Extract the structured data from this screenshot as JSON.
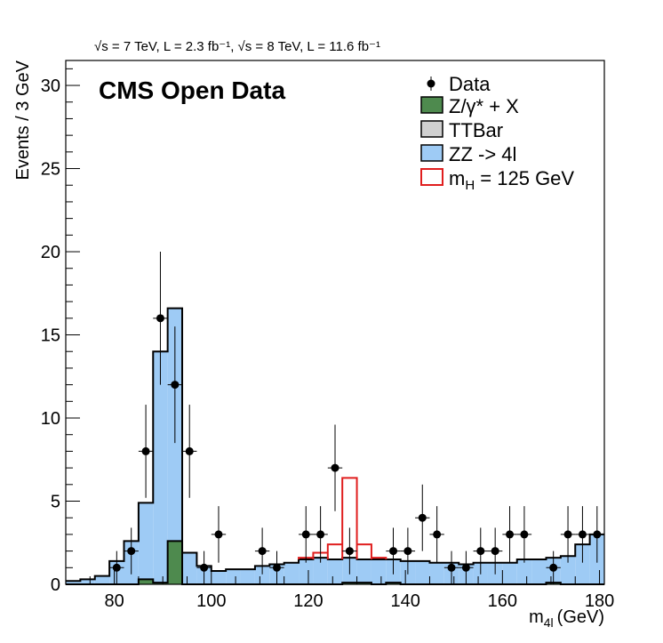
{
  "chart_data": {
    "type": "bar",
    "subtitle": "√s = 7 TeV, L = 2.3 fb⁻¹, √s = 8 TeV, L = 11.6 fb⁻¹",
    "title": "CMS Open Data",
    "xlabel": "m",
    "xlabel_sub": "4l",
    "xlabel_unit": "(GeV)",
    "ylabel": "Events / 3 GeV",
    "xlim": [
      70,
      181
    ],
    "ylim": [
      0,
      31.5
    ],
    "x_ticks": [
      80,
      100,
      120,
      140,
      160,
      180
    ],
    "y_ticks": [
      0,
      5,
      10,
      15,
      20,
      25,
      30
    ],
    "bin_width": 3,
    "bin_edges_start": 70,
    "legend_position": "top-right",
    "colors": {
      "zx": "#4e8a4e",
      "ttbar": "#d0d0d0",
      "zz": "#9ecbf5",
      "higgs": "#e01e1e",
      "data": "#000000"
    },
    "legend": [
      {
        "key": "data",
        "label": "Data",
        "style": "marker"
      },
      {
        "key": "zx",
        "label": "Z/γ* + X",
        "style": "box"
      },
      {
        "key": "ttbar",
        "label": "TTBar",
        "style": "box"
      },
      {
        "key": "zz",
        "label": "ZZ -> 4l",
        "style": "box"
      },
      {
        "key": "higgs",
        "label": "m",
        "label_sub": "H",
        "label_suffix": " = 125 GeV",
        "style": "outline"
      }
    ],
    "series": [
      {
        "name": "Z/γ* + X",
        "key": "zx",
        "values": [
          0,
          0,
          0,
          0,
          0,
          0.3,
          0.1,
          2.6,
          0,
          0,
          0,
          0,
          0,
          0,
          0,
          0,
          0,
          0,
          0,
          0.1,
          0.1,
          0,
          0.1,
          0,
          0,
          0,
          0,
          0,
          0,
          0,
          0,
          0,
          0,
          0.1,
          0,
          0,
          0
        ]
      },
      {
        "name": "TTBar",
        "key": "ttbar",
        "values": [
          0,
          0,
          0,
          0,
          0,
          0,
          0,
          0,
          0,
          0,
          0,
          0,
          0,
          0,
          0,
          0,
          0,
          0,
          0,
          0,
          0,
          0,
          0,
          0,
          0,
          0,
          0,
          0,
          0,
          0,
          0,
          0,
          0,
          0,
          0,
          0,
          0
        ]
      },
      {
        "name": "ZZ -> 4l",
        "key": "zz",
        "values": [
          0.2,
          0.3,
          0.5,
          1.4,
          2.6,
          4.6,
          13.9,
          14.0,
          1.9,
          1.1,
          0.8,
          0.9,
          0.9,
          1.1,
          1.2,
          1.3,
          1.5,
          1.6,
          1.5,
          1.5,
          1.4,
          1.5,
          1.4,
          1.4,
          1.4,
          1.3,
          1.3,
          1.2,
          1.3,
          1.3,
          1.3,
          1.5,
          1.5,
          1.5,
          1.7,
          2.4,
          3.0
        ]
      },
      {
        "name": "m_H = 125 GeV",
        "key": "higgs",
        "values": [
          0,
          0,
          0,
          0,
          0,
          0,
          0,
          0,
          0,
          0,
          0,
          0,
          0,
          0,
          0,
          0,
          0.1,
          0.3,
          0.9,
          4.8,
          0.9,
          0.1,
          0,
          0,
          0,
          0,
          0,
          0,
          0,
          0,
          0,
          0,
          0,
          0,
          0,
          0,
          0
        ]
      }
    ],
    "data_points": [
      {
        "x": 80.5,
        "y": 1,
        "err": 1.0
      },
      {
        "x": 83.5,
        "y": 2,
        "err": 1.4
      },
      {
        "x": 86.5,
        "y": 8,
        "err": 2.8
      },
      {
        "x": 89.5,
        "y": 16,
        "err": 4.0
      },
      {
        "x": 92.5,
        "y": 12,
        "err": 3.5
      },
      {
        "x": 95.5,
        "y": 8,
        "err": 2.8
      },
      {
        "x": 98.5,
        "y": 1,
        "err": 1.0
      },
      {
        "x": 101.5,
        "y": 3,
        "err": 1.7
      },
      {
        "x": 110.5,
        "y": 2,
        "err": 1.4
      },
      {
        "x": 113.5,
        "y": 1,
        "err": 1.0
      },
      {
        "x": 119.5,
        "y": 3,
        "err": 1.7
      },
      {
        "x": 122.5,
        "y": 3,
        "err": 1.7
      },
      {
        "x": 125.5,
        "y": 7,
        "err": 2.6
      },
      {
        "x": 128.5,
        "y": 2,
        "err": 1.4
      },
      {
        "x": 137.5,
        "y": 2,
        "err": 1.4
      },
      {
        "x": 140.5,
        "y": 2,
        "err": 1.4
      },
      {
        "x": 143.5,
        "y": 4,
        "err": 2.0
      },
      {
        "x": 146.5,
        "y": 3,
        "err": 1.7
      },
      {
        "x": 149.5,
        "y": 1,
        "err": 1.0
      },
      {
        "x": 152.5,
        "y": 1,
        "err": 1.0
      },
      {
        "x": 155.5,
        "y": 2,
        "err": 1.4
      },
      {
        "x": 158.5,
        "y": 2,
        "err": 1.4
      },
      {
        "x": 161.5,
        "y": 3,
        "err": 1.7
      },
      {
        "x": 164.5,
        "y": 3,
        "err": 1.7
      },
      {
        "x": 170.5,
        "y": 1,
        "err": 1.0
      },
      {
        "x": 173.5,
        "y": 3,
        "err": 1.7
      },
      {
        "x": 176.5,
        "y": 3,
        "err": 1.7
      },
      {
        "x": 179.5,
        "y": 3,
        "err": 1.7
      }
    ]
  }
}
